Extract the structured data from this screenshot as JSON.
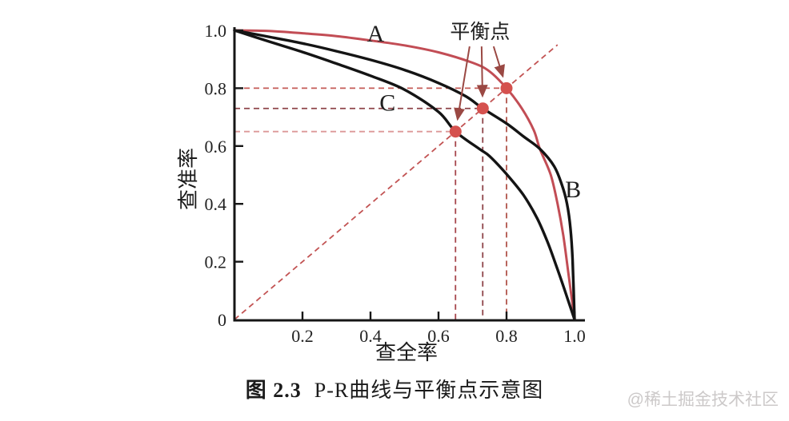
{
  "figure": {
    "caption_prefix": "图 2.3",
    "caption_title": "P-R曲线与平衡点示意图",
    "watermark": "@稀土掘金技术社区"
  },
  "chart_data": {
    "type": "line",
    "title": "P-R曲线与平衡点示意图",
    "xlabel": "查全率",
    "ylabel": "查准率",
    "xlim": [
      0,
      1.0
    ],
    "ylim": [
      0,
      1.0
    ],
    "grid": false,
    "legend": null,
    "x_ticks": [
      {
        "v": 0.2,
        "label": "0.2"
      },
      {
        "v": 0.4,
        "label": "0.4"
      },
      {
        "v": 0.6,
        "label": "0.6"
      },
      {
        "v": 0.8,
        "label": "0.8"
      },
      {
        "v": 1.0,
        "label": "1.0"
      }
    ],
    "y_ticks": [
      {
        "v": 0,
        "label": "0"
      },
      {
        "v": 0.2,
        "label": "0.2"
      },
      {
        "v": 0.4,
        "label": "0.4"
      },
      {
        "v": 0.6,
        "label": "0.6"
      },
      {
        "v": 0.8,
        "label": "0.8"
      },
      {
        "v": 1.0,
        "label": "1.0"
      }
    ],
    "series": [
      {
        "name": "A",
        "color": "#c24d55",
        "width": 3,
        "points": [
          [
            0,
            1.0
          ],
          [
            0.1,
            0.998
          ],
          [
            0.2,
            0.99
          ],
          [
            0.3,
            0.98
          ],
          [
            0.4,
            0.965
          ],
          [
            0.5,
            0.948
          ],
          [
            0.6,
            0.924
          ],
          [
            0.7,
            0.888
          ],
          [
            0.75,
            0.858
          ],
          [
            0.8,
            0.8
          ],
          [
            0.845,
            0.73
          ],
          [
            0.88,
            0.655
          ],
          [
            0.898,
            0.59
          ],
          [
            0.93,
            0.5
          ],
          [
            0.95,
            0.4
          ],
          [
            0.967,
            0.29
          ],
          [
            0.982,
            0.16
          ],
          [
            1.0,
            0
          ]
        ],
        "label_pos": [
          0.415,
          0.962
        ],
        "label_anchor": "middle"
      },
      {
        "name": "B",
        "color": "#141414",
        "width": 3.4,
        "points": [
          [
            0,
            1.0
          ],
          [
            0.1,
            0.978
          ],
          [
            0.2,
            0.955
          ],
          [
            0.3,
            0.928
          ],
          [
            0.4,
            0.898
          ],
          [
            0.5,
            0.863
          ],
          [
            0.6,
            0.818
          ],
          [
            0.68,
            0.772
          ],
          [
            0.73,
            0.73
          ],
          [
            0.8,
            0.678
          ],
          [
            0.85,
            0.633
          ],
          [
            0.898,
            0.59
          ],
          [
            0.94,
            0.53
          ],
          [
            0.963,
            0.465
          ],
          [
            0.978,
            0.4
          ],
          [
            0.988,
            0.315
          ],
          [
            0.994,
            0.21
          ],
          [
            1.0,
            0
          ]
        ],
        "label_pos": [
          0.972,
          0.423
        ],
        "label_anchor": "start"
      },
      {
        "name": "C",
        "color": "#141414",
        "width": 3.4,
        "points": [
          [
            0,
            1.0
          ],
          [
            0.1,
            0.962
          ],
          [
            0.2,
            0.925
          ],
          [
            0.3,
            0.885
          ],
          [
            0.4,
            0.843
          ],
          [
            0.5,
            0.795
          ],
          [
            0.6,
            0.718
          ],
          [
            0.65,
            0.65
          ],
          [
            0.72,
            0.59
          ],
          [
            0.75,
            0.565
          ],
          [
            0.8,
            0.503
          ],
          [
            0.85,
            0.43
          ],
          [
            0.89,
            0.35
          ],
          [
            0.92,
            0.27
          ],
          [
            0.945,
            0.19
          ],
          [
            0.97,
            0.105
          ],
          [
            1.0,
            0
          ]
        ],
        "label_pos": [
          0.45,
          0.722
        ],
        "label_anchor": "middle"
      }
    ],
    "break_even_points": [
      {
        "curve": "A",
        "recall": 0.8,
        "precision": 0.8,
        "h_color": "#c45a56",
        "v_color": "#b0544a",
        "arrow_dx": 17
      },
      {
        "curve": "B",
        "recall": 0.73,
        "precision": 0.73,
        "h_color": "#8e4449",
        "v_color": "#8e4449",
        "arrow_dx": 2
      },
      {
        "curve": "C",
        "recall": 0.65,
        "precision": 0.65,
        "h_color": "#dc9898",
        "v_color": "#a6464c",
        "arrow_dx": -13
      }
    ],
    "diagonal": {
      "from": [
        0,
        0
      ],
      "to": [
        0.95,
        0.95
      ],
      "color": "#c25353"
    },
    "annotation": {
      "label": "平衡点",
      "pos": [
        0.722,
        0.972
      ],
      "color": "#9a4843"
    },
    "dot_color": "#d5514e",
    "dot_radius": 7.5,
    "axis_color": "#161616"
  }
}
